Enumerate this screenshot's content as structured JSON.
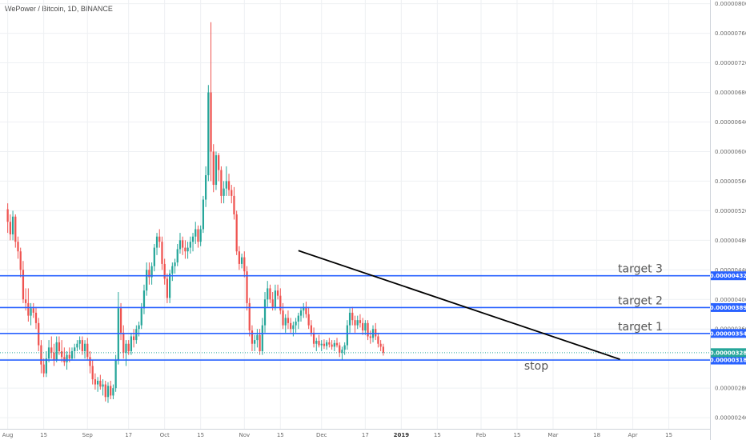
{
  "chart_data": {
    "type": "candlestick",
    "title": "WePower / Bitcoin, 1D, BINANCE",
    "y_ticks": [
      "0.00000800",
      "0.00000760",
      "0.00000720",
      "0.00000680",
      "0.00000640",
      "0.00000600",
      "0.00000560",
      "0.00000520",
      "0.00000480",
      "0.00000440",
      "0.00000400",
      "0.00000360",
      "0.00000320",
      "0.00000280",
      "0.00000240"
    ],
    "y_tick_values": [
      800,
      760,
      720,
      680,
      640,
      600,
      560,
      520,
      480,
      440,
      400,
      360,
      320,
      280,
      240
    ],
    "x_ticks": [
      {
        "label": "Aug",
        "bold": false
      },
      {
        "label": "15",
        "bold": false
      },
      {
        "label": "Sep",
        "bold": false
      },
      {
        "label": "17",
        "bold": false
      },
      {
        "label": "Oct",
        "bold": false
      },
      {
        "label": "15",
        "bold": false
      },
      {
        "label": "Nov",
        "bold": false
      },
      {
        "label": "15",
        "bold": false
      },
      {
        "label": "Dec",
        "bold": false
      },
      {
        "label": "17",
        "bold": false
      },
      {
        "label": "2019",
        "bold": true
      },
      {
        "label": "15",
        "bold": false
      },
      {
        "label": "Feb",
        "bold": false
      },
      {
        "label": "15",
        "bold": false
      },
      {
        "label": "Mar",
        "bold": false
      },
      {
        "label": "18",
        "bold": false
      },
      {
        "label": "Apr",
        "bold": false
      },
      {
        "label": "15",
        "bold": false
      }
    ],
    "x_tick_days": [
      0,
      14,
      31,
      47,
      61,
      75,
      92,
      106,
      122,
      139,
      153,
      167,
      184,
      198,
      212,
      229,
      243,
      257
    ],
    "ylim": [
      225,
      805
    ],
    "xlim": [
      -3,
      273
    ],
    "up_color": "#26a69a",
    "down_color": "#ef5350",
    "level_color": "#2962ff",
    "levels": [
      {
        "value": 432,
        "price_label": "0.00000432",
        "annotation": "target 3"
      },
      {
        "value": 389,
        "price_label": "0.00000389",
        "annotation": "target 2"
      },
      {
        "value": 354,
        "price_label": "0.00000354",
        "annotation": "target 1"
      },
      {
        "value": 318,
        "price_label": "0.00000318",
        "annotation": "stop"
      }
    ],
    "current_price": {
      "value": 328,
      "price_label": "0.00000328",
      "color": "#26a69a"
    },
    "trendline": {
      "start": [
        113,
        466
      ],
      "end": [
        238,
        319
      ],
      "color": "#000000"
    },
    "candles": [
      [
        0,
        522,
        530,
        490,
        505
      ],
      [
        1,
        505,
        515,
        480,
        488
      ],
      [
        2,
        488,
        520,
        480,
        512
      ],
      [
        3,
        512,
        515,
        470,
        478
      ],
      [
        4,
        478,
        485,
        455,
        465
      ],
      [
        5,
        465,
        470,
        430,
        440
      ],
      [
        6,
        440,
        452,
        395,
        400
      ],
      [
        7,
        400,
        415,
        385,
        395
      ],
      [
        8,
        395,
        415,
        370,
        378
      ],
      [
        9,
        378,
        395,
        365,
        388
      ],
      [
        10,
        388,
        395,
        375,
        382
      ],
      [
        11,
        382,
        390,
        360,
        368
      ],
      [
        12,
        368,
        375,
        330,
        338
      ],
      [
        13,
        338,
        345,
        300,
        312
      ],
      [
        14,
        312,
        320,
        295,
        300
      ],
      [
        15,
        300,
        330,
        295,
        320
      ],
      [
        16,
        320,
        345,
        315,
        335
      ],
      [
        17,
        335,
        350,
        320,
        328
      ],
      [
        18,
        328,
        340,
        310,
        318
      ],
      [
        19,
        318,
        350,
        315,
        342
      ],
      [
        20,
        342,
        350,
        325,
        330
      ],
      [
        21,
        330,
        345,
        315,
        322
      ],
      [
        22,
        322,
        335,
        310,
        315
      ],
      [
        23,
        315,
        330,
        305,
        325
      ],
      [
        24,
        325,
        335,
        315,
        320
      ],
      [
        25,
        320,
        335,
        318,
        330
      ],
      [
        26,
        330,
        340,
        320,
        335
      ],
      [
        27,
        335,
        345,
        330,
        340
      ],
      [
        28,
        340,
        350,
        332,
        345
      ],
      [
        29,
        345,
        350,
        325,
        330
      ],
      [
        30,
        330,
        345,
        320,
        340
      ],
      [
        31,
        340,
        348,
        318,
        322
      ],
      [
        32,
        322,
        330,
        300,
        310
      ],
      [
        33,
        310,
        318,
        285,
        292
      ],
      [
        34,
        292,
        300,
        278,
        285
      ],
      [
        35,
        285,
        295,
        275,
        290
      ],
      [
        36,
        290,
        298,
        278,
        282
      ],
      [
        37,
        282,
        292,
        270,
        285
      ],
      [
        38,
        285,
        290,
        262,
        268
      ],
      [
        39,
        268,
        288,
        260,
        283
      ],
      [
        40,
        283,
        290,
        265,
        270
      ],
      [
        41,
        270,
        285,
        265,
        280
      ],
      [
        42,
        280,
        325,
        275,
        318
      ],
      [
        43,
        318,
        410,
        312,
        388
      ],
      [
        44,
        388,
        395,
        345,
        355
      ],
      [
        45,
        355,
        365,
        320,
        328
      ],
      [
        46,
        328,
        345,
        310,
        340
      ],
      [
        47,
        340,
        345,
        325,
        330
      ],
      [
        48,
        330,
        355,
        325,
        350
      ],
      [
        49,
        350,
        360,
        335,
        345
      ],
      [
        50,
        345,
        365,
        340,
        360
      ],
      [
        51,
        360,
        370,
        350,
        365
      ],
      [
        52,
        365,
        395,
        360,
        388
      ],
      [
        53,
        388,
        420,
        380,
        412
      ],
      [
        54,
        412,
        450,
        405,
        440
      ],
      [
        55,
        440,
        450,
        420,
        430
      ],
      [
        56,
        430,
        450,
        420,
        445
      ],
      [
        57,
        445,
        475,
        438,
        470
      ],
      [
        58,
        470,
        490,
        460,
        485
      ],
      [
        59,
        485,
        495,
        470,
        478
      ],
      [
        60,
        478,
        485,
        440,
        448
      ],
      [
        61,
        448,
        455,
        420,
        428
      ],
      [
        62,
        428,
        435,
        395,
        402
      ],
      [
        63,
        402,
        440,
        395,
        435
      ],
      [
        64,
        435,
        450,
        425,
        445
      ],
      [
        65,
        445,
        455,
        435,
        450
      ],
      [
        66,
        450,
        475,
        445,
        468
      ],
      [
        67,
        468,
        490,
        462,
        480
      ],
      [
        68,
        480,
        485,
        460,
        470
      ],
      [
        69,
        470,
        480,
        455,
        465
      ],
      [
        70,
        465,
        478,
        455,
        470
      ],
      [
        71,
        470,
        485,
        462,
        478
      ],
      [
        72,
        478,
        490,
        465,
        485
      ],
      [
        73,
        485,
        505,
        475,
        495
      ],
      [
        74,
        495,
        500,
        470,
        478
      ],
      [
        75,
        478,
        500,
        472,
        495
      ],
      [
        76,
        495,
        540,
        490,
        535
      ],
      [
        77,
        535,
        580,
        525,
        568
      ],
      [
        78,
        568,
        690,
        560,
        680
      ],
      [
        79,
        680,
        775,
        560,
        600
      ],
      [
        80,
        600,
        610,
        545,
        555
      ],
      [
        81,
        555,
        600,
        548,
        595
      ],
      [
        82,
        595,
        598,
        560,
        575
      ],
      [
        83,
        575,
        580,
        530,
        540
      ],
      [
        84,
        540,
        560,
        530,
        550
      ],
      [
        85,
        550,
        580,
        540,
        560
      ],
      [
        86,
        560,
        570,
        540,
        548
      ],
      [
        87,
        548,
        555,
        530,
        540
      ],
      [
        88,
        540,
        552,
        508,
        515
      ],
      [
        89,
        515,
        520,
        460,
        465
      ],
      [
        90,
        465,
        472,
        440,
        448
      ],
      [
        91,
        448,
        462,
        442,
        457
      ],
      [
        92,
        457,
        465,
        430,
        438
      ],
      [
        93,
        438,
        445,
        385,
        395
      ],
      [
        94,
        395,
        402,
        350,
        358
      ],
      [
        95,
        358,
        365,
        330,
        340
      ],
      [
        96,
        340,
        352,
        330,
        345
      ],
      [
        97,
        345,
        360,
        335,
        352
      ],
      [
        98,
        352,
        360,
        325,
        330
      ],
      [
        99,
        330,
        375,
        325,
        365
      ],
      [
        100,
        365,
        410,
        355,
        400
      ],
      [
        101,
        400,
        425,
        390,
        415
      ],
      [
        102,
        415,
        420,
        395,
        400
      ],
      [
        103,
        400,
        410,
        385,
        390
      ],
      [
        104,
        390,
        420,
        385,
        412
      ],
      [
        105,
        412,
        420,
        400,
        405
      ],
      [
        106,
        405,
        415,
        380,
        385
      ],
      [
        107,
        385,
        395,
        360,
        365
      ],
      [
        108,
        365,
        380,
        355,
        375
      ],
      [
        109,
        375,
        385,
        360,
        368
      ],
      [
        110,
        368,
        375,
        355,
        360
      ],
      [
        111,
        360,
        370,
        350,
        365
      ],
      [
        112,
        365,
        375,
        355,
        370
      ],
      [
        113,
        370,
        382,
        360,
        378
      ],
      [
        114,
        378,
        390,
        370,
        385
      ],
      [
        115,
        385,
        395,
        375,
        390
      ],
      [
        116,
        390,
        397,
        375,
        380
      ],
      [
        117,
        380,
        390,
        360,
        365
      ],
      [
        118,
        365,
        372,
        350,
        355
      ],
      [
        119,
        355,
        362,
        335,
        340
      ],
      [
        120,
        340,
        348,
        330,
        344
      ],
      [
        121,
        344,
        352,
        335,
        338
      ],
      [
        122,
        338,
        345,
        330,
        340
      ],
      [
        123,
        340,
        346,
        333,
        337
      ],
      [
        124,
        337,
        345,
        332,
        342
      ],
      [
        125,
        342,
        348,
        335,
        339
      ],
      [
        126,
        339,
        345,
        332,
        336
      ],
      [
        127,
        336,
        345,
        330,
        341
      ],
      [
        128,
        341,
        348,
        335,
        338
      ],
      [
        129,
        338,
        342,
        322,
        328
      ],
      [
        130,
        328,
        336,
        318,
        332
      ],
      [
        131,
        332,
        342,
        325,
        338
      ],
      [
        132,
        338,
        372,
        332,
        365
      ],
      [
        133,
        365,
        388,
        355,
        382
      ],
      [
        134,
        382,
        390,
        365,
        372
      ],
      [
        135,
        372,
        378,
        355,
        365
      ],
      [
        136,
        365,
        378,
        360,
        372
      ],
      [
        137,
        372,
        380,
        362,
        368
      ],
      [
        138,
        368,
        375,
        352,
        358
      ],
      [
        139,
        358,
        372,
        352,
        368
      ],
      [
        140,
        368,
        372,
        345,
        350
      ],
      [
        141,
        350,
        358,
        340,
        348
      ],
      [
        142,
        348,
        365,
        342,
        360
      ],
      [
        143,
        360,
        368,
        345,
        350
      ],
      [
        144,
        350,
        355,
        335,
        340
      ],
      [
        145,
        340,
        345,
        330,
        336
      ],
      [
        146,
        336,
        340,
        324,
        328
      ]
    ]
  }
}
